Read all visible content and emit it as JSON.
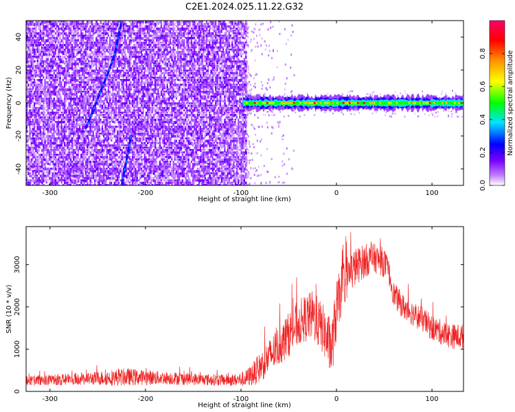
{
  "figure": {
    "title": "C2E1.2024.025.11.22.G32"
  },
  "chart_data": [
    {
      "type": "heatmap",
      "xlabel": "Height of straight line (km)",
      "ylabel": "Frequency (Hz)",
      "xlim": [
        -325,
        133
      ],
      "ylim": [
        -50,
        50
      ],
      "xticks": [
        -300,
        -200,
        -100,
        0,
        100
      ],
      "yticks": [
        -40,
        -20,
        0,
        20,
        40
      ],
      "colorbar": {
        "label": "Normalized spectral amplitude",
        "range": [
          0,
          1
        ],
        "ticks": [
          0.0,
          0.2,
          0.4,
          0.6,
          0.8
        ],
        "colors": [
          "#ffffff",
          "#7b00ff",
          "#0000ff",
          "#00e5ff",
          "#00ff00",
          "#ffff00",
          "#ff9900",
          "#ff0000",
          "#ff0066"
        ]
      },
      "regions": [
        {
          "name": "broadband noise",
          "x_range": [
            -325,
            -95
          ],
          "f_range": [
            -50,
            50
          ],
          "amplitude": 0.1
        },
        {
          "name": "tone near 0 Hz",
          "x_range": [
            -98,
            133
          ],
          "center_hz": 0,
          "half_width_hz": 2,
          "peak_amplitude": 0.9
        }
      ],
      "streaks": [
        {
          "points": [
            [
              -225,
              50
            ],
            [
              -232,
              30
            ],
            [
              -238,
              20
            ],
            [
              -245,
              10
            ],
            [
              -255,
              -5
            ],
            [
              -262,
              -15
            ]
          ]
        },
        {
          "points": [
            [
              -215,
              -20
            ],
            [
              -220,
              -35
            ],
            [
              -225,
              -50
            ]
          ]
        }
      ],
      "grid": false
    },
    {
      "type": "line",
      "xlabel": "Height of straight line (km)",
      "ylabel": "SNR (10 * v/v)",
      "xlim": [
        -325,
        133
      ],
      "ylim": [
        0,
        3900
      ],
      "xticks": [
        -300,
        -200,
        -100,
        0,
        100
      ],
      "yticks": [
        0,
        1000,
        2000,
        3000
      ],
      "series": [
        {
          "color": "#ee2222",
          "x": [
            -325,
            -300,
            -280,
            -260,
            -240,
            -230,
            -220,
            -200,
            -180,
            -160,
            -140,
            -120,
            -105,
            -95,
            -85,
            -75,
            -65,
            -55,
            -45,
            -35,
            -25,
            -15,
            -5,
            0,
            5,
            10,
            20,
            30,
            40,
            50,
            55,
            60,
            70,
            80,
            90,
            100,
            110,
            120,
            133
          ],
          "values": [
            250,
            270,
            290,
            300,
            320,
            330,
            340,
            330,
            320,
            300,
            280,
            270,
            270,
            300,
            450,
            700,
            950,
            1200,
            1500,
            1700,
            1800,
            1500,
            1000,
            1900,
            2400,
            2700,
            2950,
            3100,
            3150,
            3050,
            2800,
            2300,
            2000,
            1850,
            1700,
            1500,
            1400,
            1300,
            1300
          ],
          "noise": [
            120,
            130,
            140,
            150,
            180,
            200,
            210,
            180,
            160,
            150,
            140,
            140,
            150,
            200,
            300,
            400,
            450,
            500,
            550,
            550,
            600,
            600,
            700,
            700,
            600,
            550,
            450,
            400,
            350,
            350,
            300,
            300,
            300,
            300,
            300,
            300,
            300,
            300,
            300
          ]
        }
      ],
      "grid": false
    }
  ]
}
